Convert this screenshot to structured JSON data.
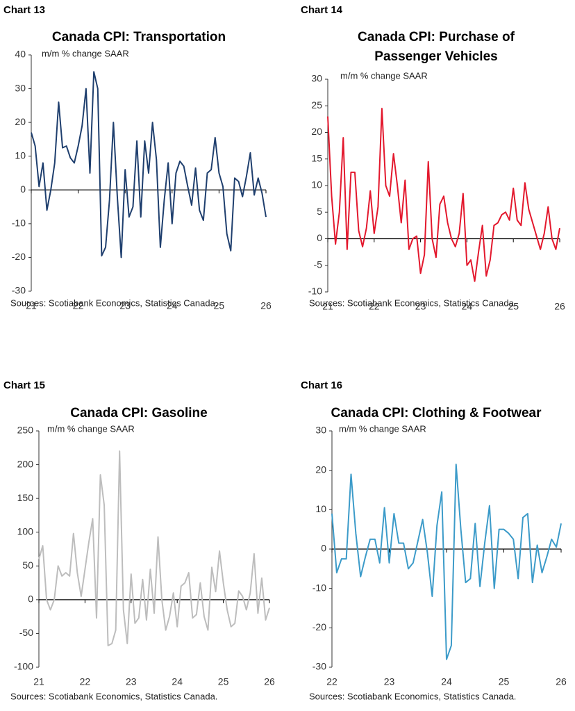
{
  "chart_data": [
    {
      "type": "line",
      "label": "Chart 13",
      "title": "Canada CPI: Transportation",
      "subtitle": "m/m % change SAAR",
      "source": "Sources: Scotiabank Economics, Statistics Canada.",
      "categories": [
        "21",
        null,
        null,
        null,
        null,
        null,
        null,
        null,
        null,
        null,
        null,
        null,
        "22",
        null,
        null,
        null,
        null,
        null,
        null,
        null,
        null,
        null,
        null,
        null,
        "23",
        null,
        null,
        null,
        null,
        null,
        null,
        null,
        null,
        null,
        null,
        null,
        "24",
        null,
        null,
        null,
        null,
        null,
        null,
        null,
        null,
        null,
        null,
        null,
        "25",
        null,
        null,
        null,
        null,
        null,
        null,
        null,
        null,
        null,
        null,
        null,
        "26"
      ],
      "series": [
        {
          "color": "#1f3f6e",
          "values": [
            17,
            13,
            1,
            8,
            -6,
            0,
            8,
            26,
            12.5,
            13,
            9.5,
            8,
            13,
            19,
            30,
            5,
            35,
            30,
            -19.5,
            -17,
            -3,
            20,
            -2,
            -20,
            6,
            -8,
            -5,
            14.5,
            -8,
            14.5,
            5,
            20,
            9,
            -17,
            -3,
            8,
            -10,
            5,
            8.5,
            7,
            1,
            -4.5,
            6.5,
            -6,
            -9,
            5,
            6,
            15.5,
            5,
            1,
            -13,
            -18,
            3.5,
            2.5,
            -2,
            4,
            11,
            -1.5,
            3.5,
            -1,
            -8
          ]
        }
      ],
      "ylim": [
        -30,
        40
      ],
      "yticks": [
        -30,
        -20,
        -10,
        0,
        10,
        20,
        30,
        40
      ]
    },
    {
      "type": "line",
      "label": "Chart 14",
      "title": [
        "Canada CPI: Purchase of",
        "Passenger Vehicles"
      ],
      "subtitle": "m/m % change SAAR",
      "source": "Sources: Scotiabank Economics, Statistics Canada.",
      "categories": [
        "21",
        null,
        null,
        null,
        null,
        null,
        null,
        null,
        null,
        null,
        null,
        null,
        "22",
        null,
        null,
        null,
        null,
        null,
        null,
        null,
        null,
        null,
        null,
        null,
        "23",
        null,
        null,
        null,
        null,
        null,
        null,
        null,
        null,
        null,
        null,
        null,
        "24",
        null,
        null,
        null,
        null,
        null,
        null,
        null,
        null,
        null,
        null,
        null,
        "25",
        null,
        null,
        null,
        null,
        null,
        null,
        null,
        null,
        null,
        null,
        null,
        "26"
      ],
      "series": [
        {
          "color": "#e3182d",
          "values": [
            23,
            8,
            -1,
            5,
            19,
            -2,
            12.5,
            12.5,
            1.5,
            -1.5,
            2,
            9,
            1,
            6,
            24.5,
            10,
            8,
            16,
            10,
            3,
            11,
            -2,
            0,
            0.5,
            -6.5,
            -3,
            14.5,
            0,
            -3.5,
            6.5,
            8,
            3,
            0,
            -1.5,
            1,
            8.5,
            -5,
            -4,
            -8,
            -2.5,
            2.5,
            -7,
            -4,
            2.5,
            3,
            4.5,
            5,
            3.5,
            9.5,
            3.5,
            2.5,
            10.5,
            5.5,
            3,
            0.5,
            -2,
            1,
            6,
            0,
            -2,
            2
          ]
        }
      ],
      "ylim": [
        -10,
        30
      ],
      "yticks": [
        -10,
        -5,
        0,
        5,
        10,
        15,
        20,
        25,
        30
      ]
    },
    {
      "type": "line",
      "label": "Chart 15",
      "title": "Canada CPI: Gasoline",
      "subtitle": "m/m % change SAAR",
      "source": "Sources: Scotiabank Economics, Statistics Canada.",
      "categories": [
        "21",
        null,
        null,
        null,
        null,
        null,
        null,
        null,
        null,
        null,
        null,
        null,
        "22",
        null,
        null,
        null,
        null,
        null,
        null,
        null,
        null,
        null,
        null,
        null,
        "23",
        null,
        null,
        null,
        null,
        null,
        null,
        null,
        null,
        null,
        null,
        null,
        "24",
        null,
        null,
        null,
        null,
        null,
        null,
        null,
        null,
        null,
        null,
        null,
        "25",
        null,
        null,
        null,
        null,
        null,
        null,
        null,
        null,
        null,
        null,
        null,
        "26"
      ],
      "series": [
        {
          "color": "#bdbdbd",
          "values": [
            60,
            80,
            0,
            -15,
            0,
            50,
            35,
            40,
            35,
            98,
            40,
            5,
            45,
            85,
            120,
            -27,
            185,
            140,
            -68,
            -65,
            -45,
            220,
            -15,
            -65,
            38,
            -35,
            -27,
            30,
            -30,
            45,
            -20,
            93,
            0,
            -45,
            -25,
            10,
            -40,
            20,
            25,
            40,
            -27,
            -22,
            25,
            -25,
            -45,
            48,
            12,
            72,
            25,
            -15,
            -40,
            -35,
            13,
            5,
            -15,
            10,
            68,
            -20,
            32,
            -30,
            -12
          ]
        }
      ],
      "ylim": [
        -100,
        250
      ],
      "yticks": [
        -100,
        -50,
        0,
        50,
        100,
        150,
        200,
        250
      ]
    },
    {
      "type": "line",
      "label": "Chart 16",
      "title": "Canada CPI: Clothing & Footwear",
      "subtitle": "m/m % change SAAR",
      "source": "Sources: Scotiabank Economics, Statistics Canada.",
      "categories": [
        "22",
        null,
        null,
        null,
        null,
        null,
        null,
        null,
        null,
        null,
        null,
        null,
        "23",
        null,
        null,
        null,
        null,
        null,
        null,
        null,
        null,
        null,
        null,
        null,
        "24",
        null,
        null,
        null,
        null,
        null,
        null,
        null,
        null,
        null,
        null,
        null,
        "25",
        null,
        null,
        null,
        null,
        null,
        null,
        null,
        null,
        null,
        null,
        null,
        "26"
      ],
      "series": [
        {
          "color": "#3c9bc9",
          "values": [
            9,
            -6,
            -2.5,
            -2.5,
            19,
            4,
            -7,
            -2,
            2.5,
            2.5,
            -3.5,
            10.5,
            -3.5,
            9,
            1.5,
            1.5,
            -5,
            -3.5,
            2,
            7.5,
            -1,
            -12,
            6,
            14.5,
            -28,
            -24.5,
            21.5,
            5,
            -8.5,
            -7.5,
            6.5,
            -9.5,
            1.5,
            11,
            -10,
            5,
            5,
            4,
            2.5,
            -7.5,
            8,
            9,
            -8.5,
            1,
            -6,
            -2,
            2.5,
            0.5,
            6.5
          ]
        }
      ],
      "ylim": [
        -30,
        30
      ],
      "yticks": [
        -30,
        -20,
        -10,
        0,
        10,
        20,
        30
      ]
    }
  ]
}
